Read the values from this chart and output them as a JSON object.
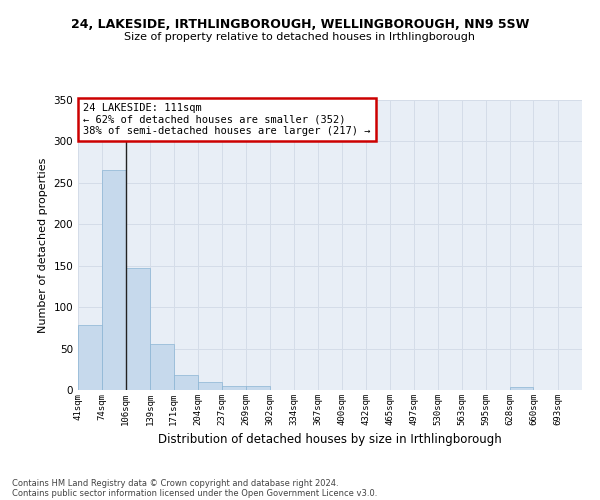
{
  "title": "24, LAKESIDE, IRTHLINGBOROUGH, WELLINGBOROUGH, NN9 5SW",
  "subtitle": "Size of property relative to detached houses in Irthlingborough",
  "xlabel": "Distribution of detached houses by size in Irthlingborough",
  "ylabel": "Number of detached properties",
  "footer_line1": "Contains HM Land Registry data © Crown copyright and database right 2024.",
  "footer_line2": "Contains public sector information licensed under the Open Government Licence v3.0.",
  "annotation_line1": "24 LAKESIDE: 111sqm",
  "annotation_line2": "← 62% of detached houses are smaller (352)",
  "annotation_line3": "38% of semi-detached houses are larger (217) →",
  "bar_color": "#c6d9ec",
  "bar_edge_color": "#8ab4d4",
  "vline_color": "#222222",
  "annotation_box_edgecolor": "#cc0000",
  "categories": [
    "41sqm",
    "74sqm",
    "106sqm",
    "139sqm",
    "171sqm",
    "204sqm",
    "237sqm",
    "269sqm",
    "302sqm",
    "334sqm",
    "367sqm",
    "400sqm",
    "432sqm",
    "465sqm",
    "497sqm",
    "530sqm",
    "563sqm",
    "595sqm",
    "628sqm",
    "660sqm",
    "693sqm"
  ],
  "values": [
    78,
    265,
    147,
    56,
    18,
    10,
    5,
    5,
    0,
    0,
    0,
    0,
    0,
    0,
    0,
    0,
    0,
    0,
    4,
    0,
    0
  ],
  "bin_edges": [
    41,
    74,
    106,
    139,
    171,
    204,
    237,
    269,
    302,
    334,
    367,
    400,
    432,
    465,
    497,
    530,
    563,
    595,
    628,
    660,
    693,
    726
  ],
  "ylim": [
    0,
    350
  ],
  "yticks": [
    0,
    50,
    100,
    150,
    200,
    250,
    300,
    350
  ],
  "vline_x": 106,
  "grid_color": "#d4dce8",
  "bg_color": "#e8eef6"
}
